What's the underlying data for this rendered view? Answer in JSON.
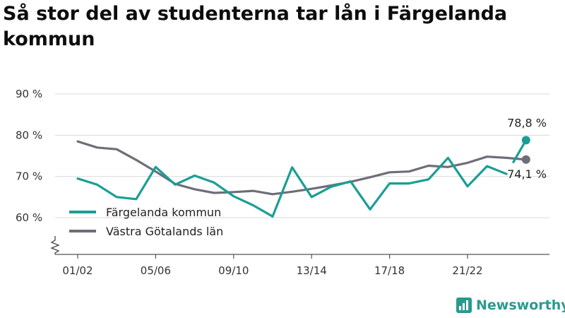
{
  "title": "Så stor del av studenterna tar lån i Färgelanda kommun",
  "brand": {
    "name": "Newsworthy",
    "color": "#2a9a8f",
    "icon": "bar-chart-logo-icon"
  },
  "chart_data": {
    "type": "line",
    "title": "Så stor del av studenterna tar lån i Färgelanda kommun",
    "xlabel": "",
    "ylabel": "",
    "ylim": [
      52,
      92
    ],
    "yticks": [
      60,
      70,
      80,
      90
    ],
    "ytick_labels": [
      "60 %",
      "70 %",
      "80 %",
      "90 %"
    ],
    "x": [
      "01/02",
      "02/03",
      "03/04",
      "04/05",
      "05/06",
      "06/07",
      "07/08",
      "08/09",
      "09/10",
      "10/11",
      "11/12",
      "12/13",
      "13/14",
      "14/15",
      "15/16",
      "16/17",
      "17/18",
      "18/19",
      "19/20",
      "20/21",
      "21/22",
      "22/23",
      "23/24",
      "24/25"
    ],
    "xtick_labels": [
      "01/02",
      "05/06",
      "09/10",
      "13/14",
      "17/18",
      "21/22"
    ],
    "xtick_indices": [
      0,
      4,
      8,
      12,
      16,
      20
    ],
    "grid": true,
    "legend_position": "bottom-left",
    "series": [
      {
        "name": "Färgelanda kommun",
        "color": "#1a9e94",
        "values": [
          69.5,
          68.0,
          65.0,
          64.5,
          72.3,
          68.0,
          70.2,
          68.5,
          65.2,
          63.0,
          60.3,
          72.2,
          65.0,
          67.5,
          68.8,
          62.0,
          68.3,
          68.3,
          69.3,
          74.5,
          67.6,
          72.5,
          70.6,
          78.8
        ],
        "gap_before_last": true,
        "end_label": "78,8 %"
      },
      {
        "name": "Västra Götalands län",
        "color": "#6e6e78",
        "values": [
          78.5,
          77.0,
          76.6,
          74.0,
          71.2,
          68.2,
          66.9,
          66.0,
          66.2,
          66.5,
          65.7,
          66.3,
          67.0,
          67.8,
          68.7,
          69.8,
          71.0,
          71.2,
          72.6,
          72.3,
          73.3,
          74.8,
          74.5,
          74.1
        ],
        "end_label": "74,1 %"
      }
    ]
  }
}
